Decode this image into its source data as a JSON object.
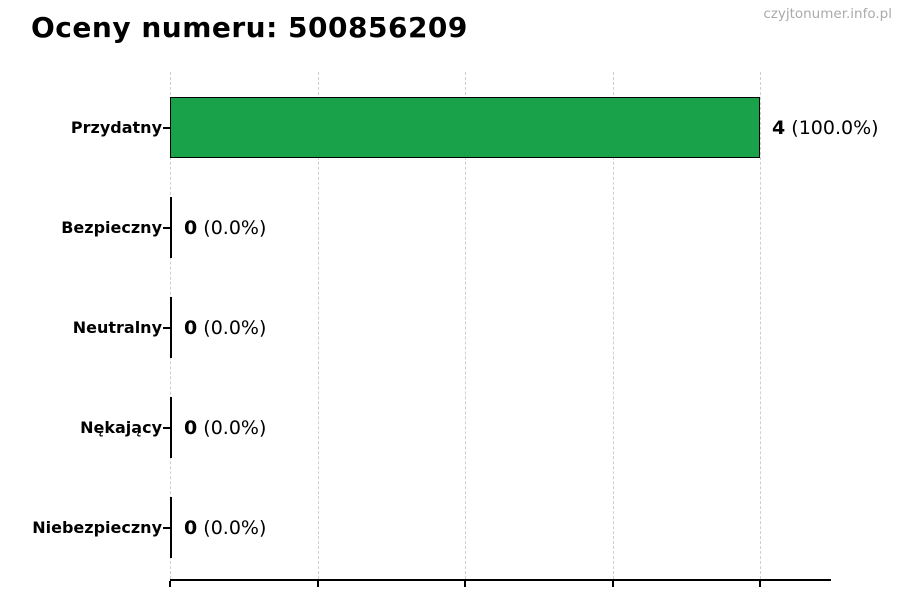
{
  "page": {
    "watermark": "czyjtonumer.info.pl"
  },
  "chart_data": {
    "type": "bar",
    "orientation": "horizontal",
    "title": "Oceny numeru: 500856209",
    "categories": [
      "Przydatny",
      "Bezpieczny",
      "Neutralny",
      "Nękający",
      "Niebezpieczny"
    ],
    "values": [
      4,
      0,
      0,
      0,
      0
    ],
    "count_labels": [
      "4",
      "0",
      "0",
      "0",
      "0"
    ],
    "percent_labels": [
      "(100.0%)",
      "(0.0%)",
      "(0.0%)",
      "(0.0%)",
      "(0.0%)"
    ],
    "xlabel": "",
    "ylabel": "",
    "xlim": [
      0,
      4.48
    ],
    "x_ticks": [
      0,
      1,
      2,
      3,
      4
    ],
    "x_tick_labels_visible": false,
    "grid": "vertical-dashed",
    "grid_color": "#cfcfcf",
    "legend": "none",
    "bar_color": "#1aa24a",
    "bar_border_color": "#000000",
    "axis_color": "#000000",
    "watermark_color": "#aaaaaa"
  }
}
